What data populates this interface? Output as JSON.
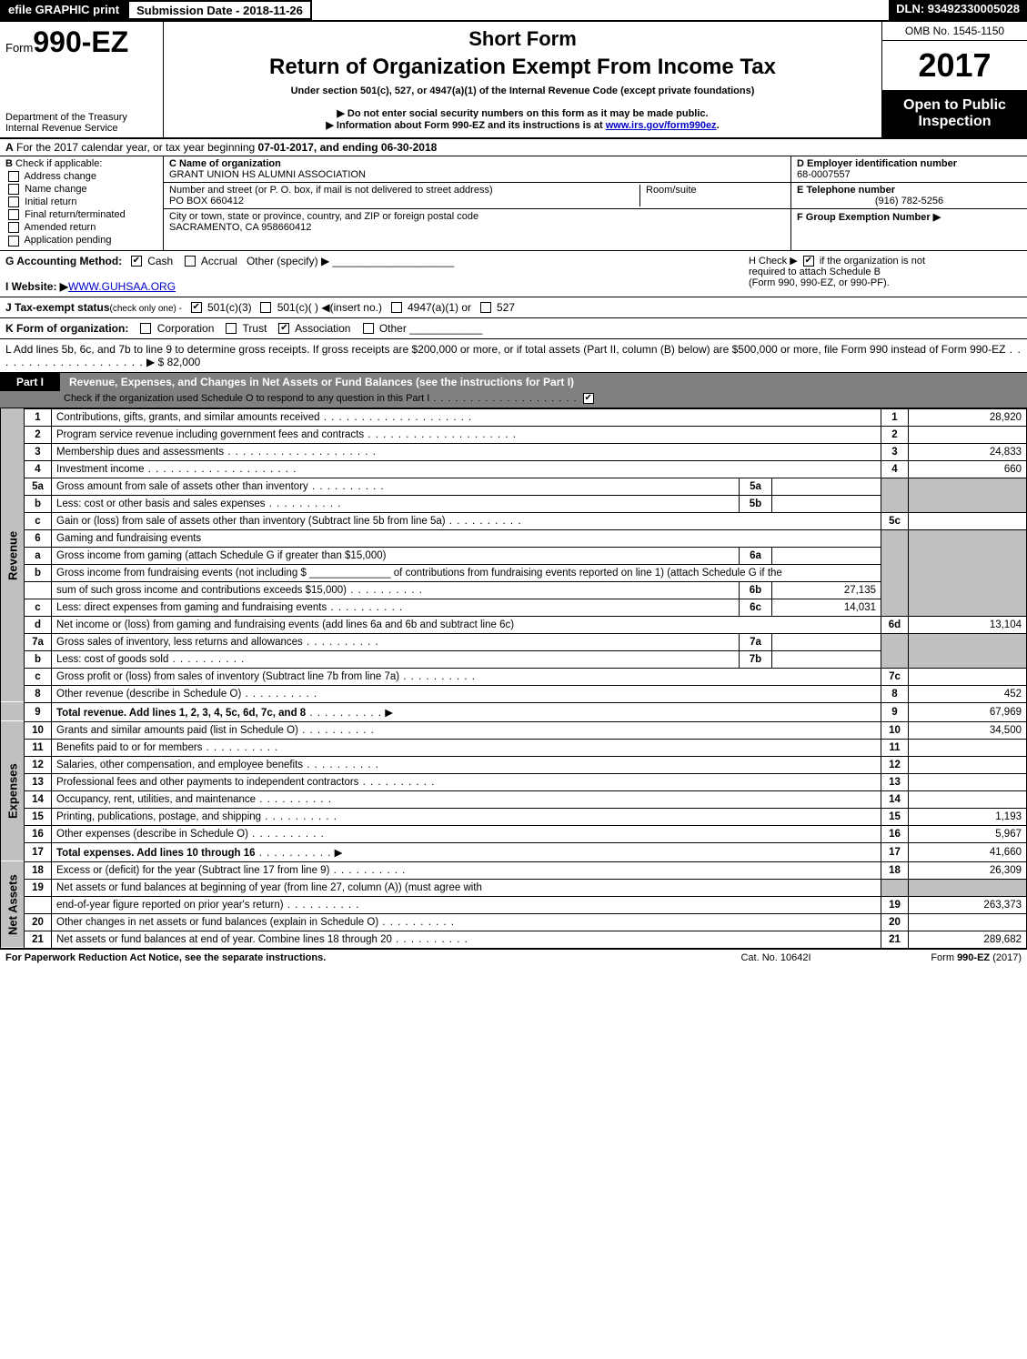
{
  "topbar": {
    "efile": "efile GRAPHIC print",
    "subdate": "Submission Date - 2018-11-26",
    "dln": "DLN: 93492330005028"
  },
  "header": {
    "form_prefix": "Form",
    "form_no": "990-EZ",
    "dept1": "Department of the Treasury",
    "dept2": "Internal Revenue Service",
    "short_form": "Short Form",
    "return_title": "Return of Organization Exempt From Income Tax",
    "sub1": "Under section 501(c), 527, or 4947(a)(1) of the Internal Revenue Code (except private foundations)",
    "sub2": "▶ Do not enter social security numbers on this form as it may be made public.",
    "sub3_pre": "▶ Information about Form 990-EZ and its instructions is at ",
    "sub3_link": "www.irs.gov/form990ez",
    "sub3_post": ".",
    "omb": "OMB No. 1545-1150",
    "year": "2017",
    "open_pub1": "Open to Public",
    "open_pub2": "Inspection"
  },
  "A": {
    "text_pre": "For the 2017 calendar year, or tax year beginning ",
    "begin": "07-01-2017",
    "mid": ", and ending ",
    "end": "06-30-2018"
  },
  "B": {
    "label": "Check if applicable:",
    "items": [
      {
        "label": "Address change",
        "checked": false
      },
      {
        "label": "Name change",
        "checked": false
      },
      {
        "label": "Initial return",
        "checked": false
      },
      {
        "label": "Final return/terminated",
        "checked": false
      },
      {
        "label": "Amended return",
        "checked": false
      },
      {
        "label": "Application pending",
        "checked": false
      }
    ]
  },
  "C": {
    "label": "C Name of organization",
    "value": "GRANT UNION HS ALUMNI ASSOCIATION",
    "addr_label": "Number and street (or P. O. box, if mail is not delivered to street address)",
    "addr_value": "PO BOX 660412",
    "room_label": "Room/suite",
    "city_label": "City or town, state or province, country, and ZIP or foreign postal code",
    "city_value": "SACRAMENTO, CA  958660412"
  },
  "D": {
    "label": "D Employer identification number",
    "value": "68-0007557"
  },
  "E": {
    "label": "E Telephone number",
    "value": "(916) 782-5256"
  },
  "F": {
    "label": "F Group Exemption Number",
    "arrow": "▶"
  },
  "G": {
    "label": "G Accounting Method:",
    "cash": "Cash",
    "accrual": "Accrual",
    "other": "Other (specify) ▶",
    "cash_checked": true
  },
  "H": {
    "line1_pre": "H  Check ▶",
    "line1_post": " if the organization is not",
    "line2": "required to attach Schedule B",
    "line3": "(Form 990, 990-EZ, or 990-PF)."
  },
  "I": {
    "label": "I Website: ▶",
    "value": "WWW.GUHSAA.ORG"
  },
  "J": {
    "label": "J Tax-exempt status",
    "note": "(check only one) -",
    "opt1": "501(c)(3)",
    "opt2": "501(c)(  ) ◀(insert no.)",
    "opt3": "4947(a)(1) or",
    "opt4": "527",
    "opt1_checked": true
  },
  "K": {
    "label": "K Form of organization:",
    "opts": [
      "Corporation",
      "Trust",
      "Association",
      "Other"
    ],
    "checked_index": 2
  },
  "L": {
    "text": "L Add lines 5b, 6c, and 7b to line 9 to determine gross receipts. If gross receipts are $200,000 or more, or if total assets (Part II, column (B) below) are $500,000 or more, file Form 990 instead of Form 990-EZ",
    "amt": "▶ $ 82,000"
  },
  "part1": {
    "label": "Part I",
    "title": "Revenue, Expenses, and Changes in Net Assets or Fund Balances (see the instructions for Part I)",
    "sub": "Check if the organization used Schedule O to respond to any question in this Part I",
    "sub_checked": true
  },
  "sections": {
    "revenue": "Revenue",
    "expenses": "Expenses",
    "netassets": "Net Assets"
  },
  "lines": {
    "l1": {
      "n": "1",
      "d": "Contributions, gifts, grants, and similar amounts received",
      "idx": "1",
      "amt": "28,920"
    },
    "l2": {
      "n": "2",
      "d": "Program service revenue including government fees and contracts",
      "idx": "2",
      "amt": ""
    },
    "l3": {
      "n": "3",
      "d": "Membership dues and assessments",
      "idx": "3",
      "amt": "24,833"
    },
    "l4": {
      "n": "4",
      "d": "Investment income",
      "idx": "4",
      "amt": "660"
    },
    "l5a": {
      "n": "5a",
      "d": "Gross amount from sale of assets other than inventory",
      "sub": "5a",
      "sv": ""
    },
    "l5b": {
      "n": "b",
      "d": "Less: cost or other basis and sales expenses",
      "sub": "5b",
      "sv": ""
    },
    "l5c": {
      "n": "c",
      "d": "Gain or (loss) from sale of assets other than inventory (Subtract line 5b from line 5a)",
      "idx": "5c",
      "amt": ""
    },
    "l6": {
      "n": "6",
      "d": "Gaming and fundraising events"
    },
    "l6a": {
      "n": "a",
      "d": "Gross income from gaming (attach Schedule G if greater than $15,000)",
      "sub": "6a",
      "sv": ""
    },
    "l6b": {
      "n": "b",
      "d": "Gross income from fundraising events (not including $ ______________ of contributions from fundraising events reported on line 1) (attach Schedule G if the"
    },
    "l6b2": {
      "d": "sum of such gross income and contributions exceeds $15,000)",
      "sub": "6b",
      "sv": "27,135"
    },
    "l6c": {
      "n": "c",
      "d": "Less: direct expenses from gaming and fundraising events",
      "sub": "6c",
      "sv": "14,031"
    },
    "l6d": {
      "n": "d",
      "d": "Net income or (loss) from gaming and fundraising events (add lines 6a and 6b and subtract line 6c)",
      "idx": "6d",
      "amt": "13,104"
    },
    "l7a": {
      "n": "7a",
      "d": "Gross sales of inventory, less returns and allowances",
      "sub": "7a",
      "sv": ""
    },
    "l7b": {
      "n": "b",
      "d": "Less: cost of goods sold",
      "sub": "7b",
      "sv": ""
    },
    "l7c": {
      "n": "c",
      "d": "Gross profit or (loss) from sales of inventory (Subtract line 7b from line 7a)",
      "idx": "7c",
      "amt": ""
    },
    "l8": {
      "n": "8",
      "d": "Other revenue (describe in Schedule O)",
      "idx": "8",
      "amt": "452"
    },
    "l9": {
      "n": "9",
      "d": "Total revenue. Add lines 1, 2, 3, 4, 5c, 6d, 7c, and 8",
      "idx": "9",
      "amt": "67,969",
      "bold": true,
      "arrow": true
    },
    "l10": {
      "n": "10",
      "d": "Grants and similar amounts paid (list in Schedule O)",
      "idx": "10",
      "amt": "34,500"
    },
    "l11": {
      "n": "11",
      "d": "Benefits paid to or for members",
      "idx": "11",
      "amt": ""
    },
    "l12": {
      "n": "12",
      "d": "Salaries, other compensation, and employee benefits",
      "idx": "12",
      "amt": ""
    },
    "l13": {
      "n": "13",
      "d": "Professional fees and other payments to independent contractors",
      "idx": "13",
      "amt": ""
    },
    "l14": {
      "n": "14",
      "d": "Occupancy, rent, utilities, and maintenance",
      "idx": "14",
      "amt": ""
    },
    "l15": {
      "n": "15",
      "d": "Printing, publications, postage, and shipping",
      "idx": "15",
      "amt": "1,193"
    },
    "l16": {
      "n": "16",
      "d": "Other expenses (describe in Schedule O)",
      "idx": "16",
      "amt": "5,967"
    },
    "l17": {
      "n": "17",
      "d": "Total expenses. Add lines 10 through 16",
      "idx": "17",
      "amt": "41,660",
      "bold": true,
      "arrow": true
    },
    "l18": {
      "n": "18",
      "d": "Excess or (deficit) for the year (Subtract line 17 from line 9)",
      "idx": "18",
      "amt": "26,309"
    },
    "l19": {
      "n": "19",
      "d": "Net assets or fund balances at beginning of year (from line 27, column (A)) (must agree with"
    },
    "l19b": {
      "d": "end-of-year figure reported on prior year's return)",
      "idx": "19",
      "amt": "263,373"
    },
    "l20": {
      "n": "20",
      "d": "Other changes in net assets or fund balances (explain in Schedule O)",
      "idx": "20",
      "amt": ""
    },
    "l21": {
      "n": "21",
      "d": "Net assets or fund balances at end of year. Combine lines 18 through 20",
      "idx": "21",
      "amt": "289,682"
    }
  },
  "footer": {
    "left": "For Paperwork Reduction Act Notice, see the separate instructions.",
    "mid": "Cat. No. 10642I",
    "right_pre": "Form ",
    "right_bold": "990-EZ",
    "right_post": " (2017)"
  },
  "colors": {
    "black": "#000000",
    "grey_header": "#808080",
    "grey_cell": "#c0c0c0",
    "link": "#0000cc"
  }
}
